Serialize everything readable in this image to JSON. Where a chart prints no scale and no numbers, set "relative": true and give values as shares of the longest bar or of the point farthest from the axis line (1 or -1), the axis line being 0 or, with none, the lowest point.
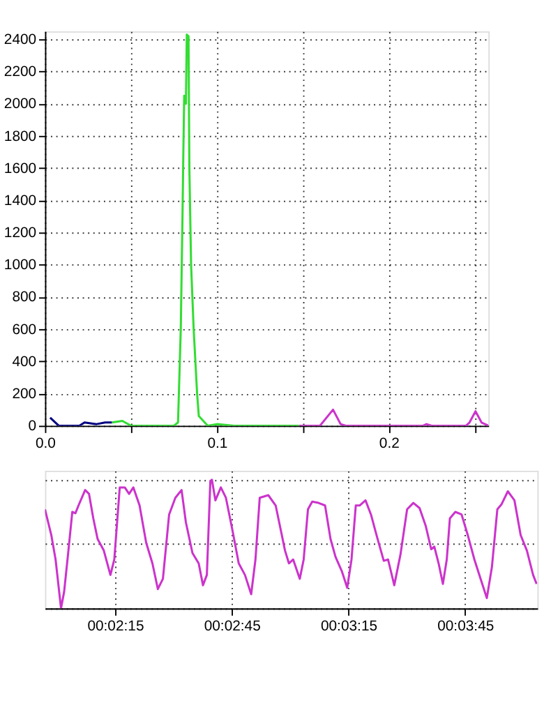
{
  "chart_data": [
    {
      "type": "line",
      "xlim": [
        0,
        0.258
      ],
      "ylim": [
        0,
        2450
      ],
      "grid": true,
      "xticks": [
        {
          "value": 0,
          "label": "0.0"
        },
        {
          "value": 0.05,
          "label": null
        },
        0.1,
        {
          "value": 0.15,
          "label": null
        },
        0.2,
        {
          "value": 0.25,
          "label": null
        }
      ],
      "yticks": [
        0,
        200,
        400,
        600,
        800,
        1000,
        1200,
        1400,
        1600,
        1800,
        2000,
        2200,
        2400
      ],
      "series": [
        {
          "color": "#000080",
          "x": [
            0.003,
            0.008,
            0.02,
            0.023,
            0.03,
            0.035,
            0.039
          ],
          "values": [
            50,
            0,
            0,
            20,
            10,
            20,
            20
          ]
        },
        {
          "color": "#33dd33",
          "x": [
            0.039,
            0.045,
            0.05,
            0.075,
            0.0774,
            0.079,
            0.08,
            0.0805,
            0.081,
            0.082,
            0.0825,
            0.0835,
            0.084,
            0.085,
            0.0865,
            0.0885,
            0.0895,
            0.0947,
            0.1,
            0.11,
            0.148
          ],
          "values": [
            20,
            30,
            0,
            0,
            20,
            600,
            1300,
            1700,
            2050,
            2000,
            2430,
            2420,
            1600,
            1000,
            600,
            200,
            60,
            0,
            10,
            0,
            0
          ]
        },
        {
          "color": "#cc33cc",
          "x": [
            0.148,
            0.16,
            0.1676,
            0.172,
            0.175,
            0.22,
            0.222,
            0.225,
            0.245,
            0.247,
            0.2505,
            0.254,
            0.256,
            0.258
          ],
          "values": [
            0,
            0,
            100,
            10,
            0,
            0,
            10,
            0,
            0,
            20,
            90,
            20,
            10,
            0
          ]
        }
      ]
    },
    {
      "type": "line",
      "relative": true,
      "grid": true,
      "tick_labels": "x",
      "xlim": [
        0.032494,
        0.067667
      ],
      "xticks": [
        {
          "value": 0.0375,
          "label": "00:02:15"
        },
        {
          "value": 0.045833,
          "label": "00:02:45"
        },
        {
          "value": 0.054167,
          "label": "00:03:15"
        },
        {
          "value": 0.0625,
          "label": "00:03:45"
        }
      ],
      "series": [
        {
          "color": "#cc33cc",
          "x": [
            0.032494,
            0.032944,
            0.03325,
            0.033639,
            0.033861,
            0.034139,
            0.034444,
            0.034667,
            0.034889,
            0.035361,
            0.035639,
            0.035944,
            0.03625,
            0.036694,
            0.037167,
            0.037444,
            0.037833,
            0.038194,
            0.0385,
            0.038806,
            0.03925,
            0.039722,
            0.040167,
            0.040556,
            0.040917,
            0.041361,
            0.041806,
            0.04225,
            0.042556,
            0.043028,
            0.043472,
            0.043778,
            0.044056,
            0.044306,
            0.044417,
            0.044667,
            0.045056,
            0.045417,
            0.045861,
            0.046333,
            0.046778,
            0.047222,
            0.047528,
            0.047833,
            0.048444,
            0.048972,
            0.049639,
            0.049917,
            0.050222,
            0.050694,
            0.050972,
            0.051278,
            0.051583,
            0.052028,
            0.0525,
            0.052889,
            0.05325,
            0.053694,
            0.054083,
            0.054389,
            0.054694,
            0.054972,
            0.055389,
            0.055778,
            0.05625,
            0.056694,
            0.057,
            0.057444,
            0.057889,
            0.058361,
            0.058806,
            0.05925,
            0.059694,
            0.060083,
            0.060306,
            0.060611,
            0.060917,
            0.061194,
            0.061417,
            0.061806,
            0.06225,
            0.062694,
            0.063167,
            0.063611,
            0.064056,
            0.064417,
            0.064806,
            0.065111,
            0.065556,
            0.066028,
            0.066472,
            0.066917,
            0.067361,
            0.067611
          ],
          "values": [
            0.77,
            0.57,
            0.38,
            0.0,
            0.13,
            0.42,
            0.75,
            0.74,
            0.8,
            0.92,
            0.89,
            0.7,
            0.54,
            0.45,
            0.26,
            0.38,
            0.94,
            0.94,
            0.89,
            0.94,
            0.8,
            0.51,
            0.35,
            0.15,
            0.23,
            0.73,
            0.86,
            0.92,
            0.67,
            0.43,
            0.35,
            0.18,
            0.26,
            0.99,
            1.0,
            0.84,
            0.94,
            0.86,
            0.62,
            0.35,
            0.26,
            0.11,
            0.38,
            0.86,
            0.88,
            0.8,
            0.45,
            0.35,
            0.38,
            0.23,
            0.38,
            0.77,
            0.83,
            0.82,
            0.8,
            0.54,
            0.4,
            0.29,
            0.16,
            0.38,
            0.8,
            0.8,
            0.84,
            0.73,
            0.54,
            0.37,
            0.38,
            0.18,
            0.42,
            0.77,
            0.82,
            0.78,
            0.64,
            0.46,
            0.48,
            0.35,
            0.19,
            0.38,
            0.7,
            0.75,
            0.73,
            0.57,
            0.38,
            0.23,
            0.08,
            0.32,
            0.77,
            0.81,
            0.91,
            0.84,
            0.57,
            0.45,
            0.26,
            0.19
          ]
        }
      ]
    }
  ]
}
